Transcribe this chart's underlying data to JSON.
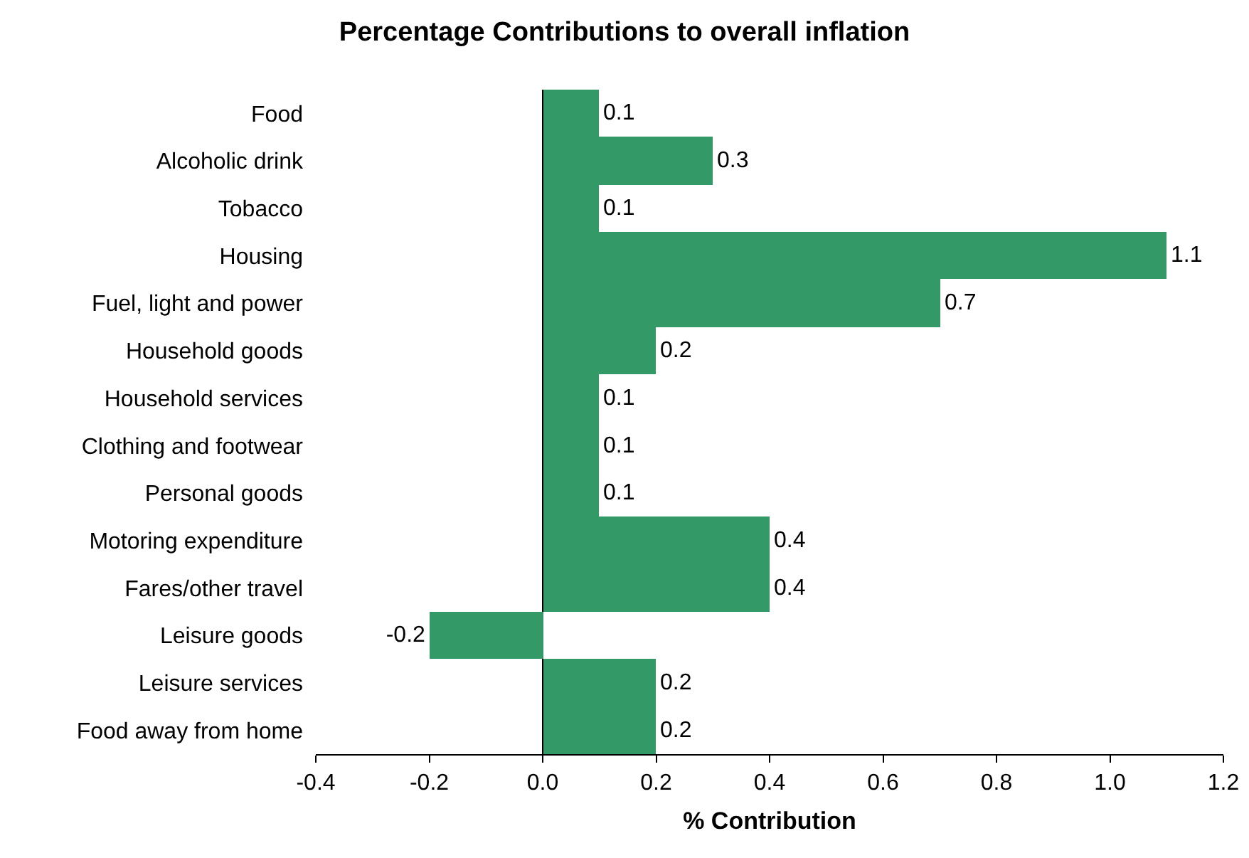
{
  "chart_data": {
    "type": "bar",
    "orientation": "horizontal",
    "title": "Percentage Contributions to overall inflation",
    "xlabel": "% Contribution",
    "categories": [
      "Food",
      "Alcoholic drink",
      "Tobacco",
      "Housing",
      "Fuel, light and power",
      "Household goods",
      "Household services",
      "Clothing and footwear",
      "Personal goods",
      "Motoring expenditure",
      "Fares/other travel",
      "Leisure goods",
      "Leisure services",
      "Food away from home"
    ],
    "values": [
      0.1,
      0.3,
      0.1,
      1.1,
      0.7,
      0.2,
      0.1,
      0.1,
      0.1,
      0.4,
      0.4,
      -0.2,
      0.2,
      0.2
    ],
    "color": "#339966",
    "data_labels": true,
    "xlim": [
      -0.4,
      1.2
    ],
    "xticks": [
      -0.4,
      -0.2,
      {
        "value": 0,
        "label": "0.0"
      },
      0.2,
      0.4,
      0.6,
      0.8,
      {
        "value": 1,
        "label": "1.0"
      },
      1.2
    ]
  }
}
